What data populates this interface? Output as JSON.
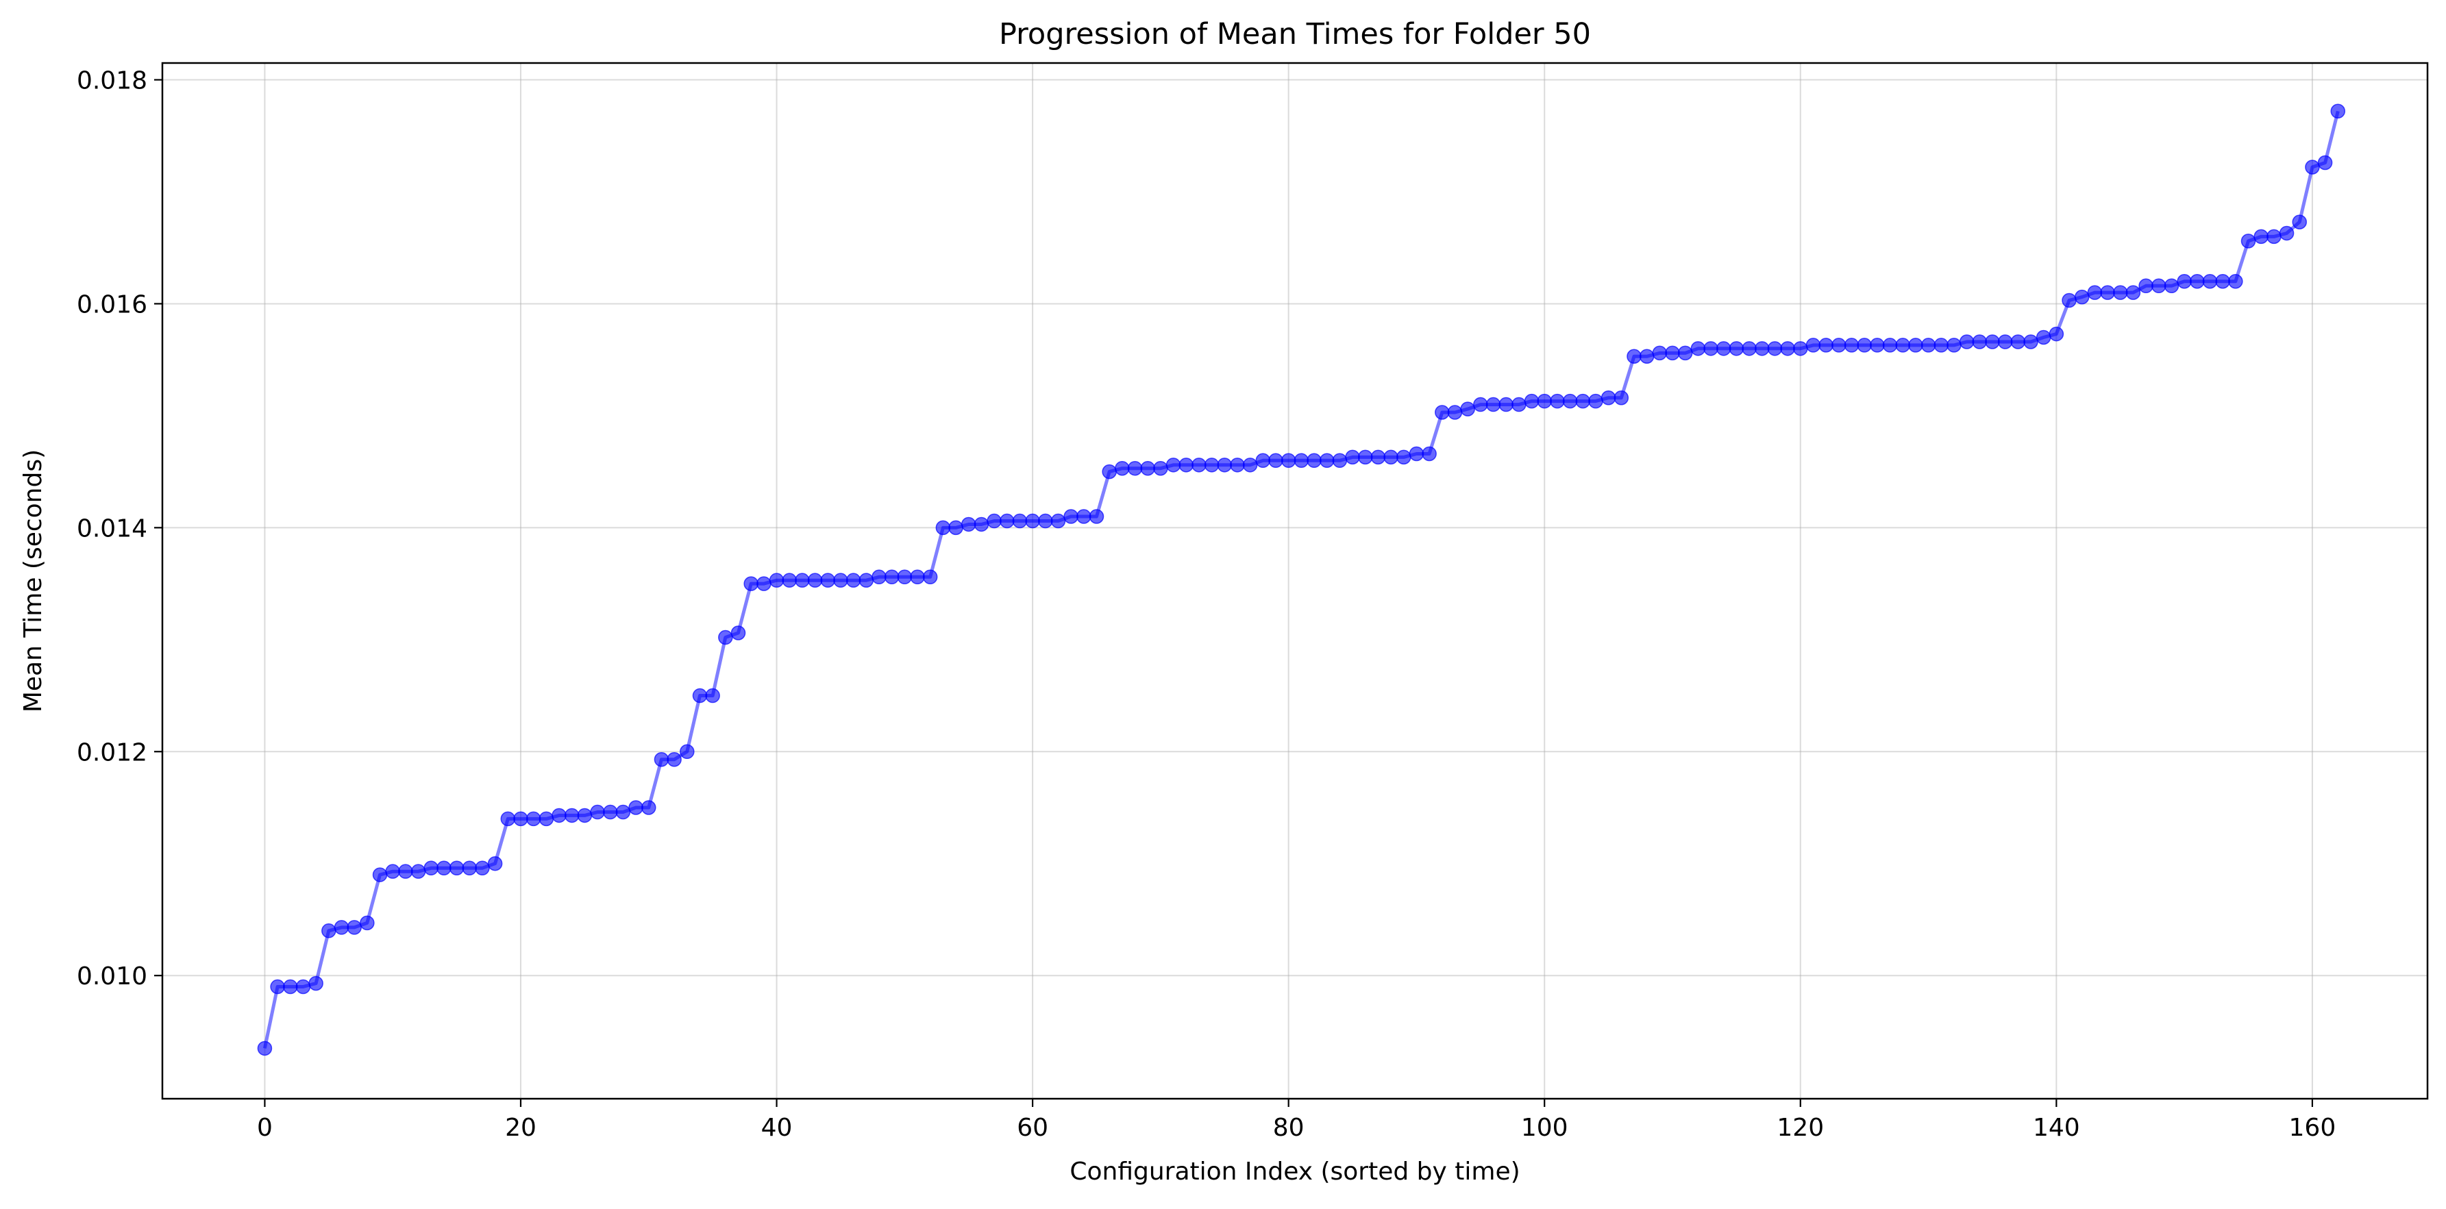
{
  "chart_data": {
    "type": "line",
    "title": "Progression of Mean Times for Folder 50",
    "xlabel": "Configuration Index (sorted by time)",
    "ylabel": "Mean Time (seconds)",
    "xlim": [
      -8,
      169
    ],
    "ylim": [
      0.0089,
      0.01815
    ],
    "xticks": [
      0,
      20,
      40,
      60,
      80,
      100,
      120,
      140,
      160
    ],
    "xtick_labels": [
      "0",
      "20",
      "40",
      "60",
      "80",
      "100",
      "120",
      "140",
      "160"
    ],
    "yticks": [
      0.01,
      0.012,
      0.014,
      0.016,
      0.018
    ],
    "ytick_labels": [
      "0.010",
      "0.012",
      "0.014",
      "0.016",
      "0.018"
    ],
    "grid": true,
    "line_color": "#0000ff",
    "marker": "circle",
    "series": [
      {
        "values": [
          0.00935,
          0.0099,
          0.0099,
          0.0099,
          0.00993,
          0.0104,
          0.01043,
          0.01043,
          0.01047,
          0.0109,
          0.01093,
          0.01093,
          0.01093,
          0.01096,
          0.01096,
          0.01096,
          0.01096,
          0.01096,
          0.011,
          0.0114,
          0.0114,
          0.0114,
          0.0114,
          0.01143,
          0.01143,
          0.01143,
          0.01146,
          0.01146,
          0.01146,
          0.0115,
          0.0115,
          0.01193,
          0.01193,
          0.012,
          0.0125,
          0.0125,
          0.01302,
          0.01306,
          0.0135,
          0.0135,
          0.01353,
          0.01353,
          0.01353,
          0.01353,
          0.01353,
          0.01353,
          0.01353,
          0.01353,
          0.01356,
          0.01356,
          0.01356,
          0.01356,
          0.01356,
          0.014,
          0.014,
          0.01403,
          0.01403,
          0.01406,
          0.01406,
          0.01406,
          0.01406,
          0.01406,
          0.01406,
          0.0141,
          0.0141,
          0.0141,
          0.0145,
          0.01453,
          0.01453,
          0.01453,
          0.01453,
          0.01456,
          0.01456,
          0.01456,
          0.01456,
          0.01456,
          0.01456,
          0.01456,
          0.0146,
          0.0146,
          0.0146,
          0.0146,
          0.0146,
          0.0146,
          0.0146,
          0.01463,
          0.01463,
          0.01463,
          0.01463,
          0.01463,
          0.01466,
          0.01466,
          0.01503,
          0.01503,
          0.01506,
          0.0151,
          0.0151,
          0.0151,
          0.0151,
          0.01513,
          0.01513,
          0.01513,
          0.01513,
          0.01513,
          0.01513,
          0.01516,
          0.01516,
          0.01553,
          0.01553,
          0.01556,
          0.01556,
          0.01556,
          0.0156,
          0.0156,
          0.0156,
          0.0156,
          0.0156,
          0.0156,
          0.0156,
          0.0156,
          0.0156,
          0.01563,
          0.01563,
          0.01563,
          0.01563,
          0.01563,
          0.01563,
          0.01563,
          0.01563,
          0.01563,
          0.01563,
          0.01563,
          0.01563,
          0.01566,
          0.01566,
          0.01566,
          0.01566,
          0.01566,
          0.01566,
          0.0157,
          0.01573,
          0.01603,
          0.01606,
          0.0161,
          0.0161,
          0.0161,
          0.0161,
          0.01616,
          0.01616,
          0.01616,
          0.0162,
          0.0162,
          0.0162,
          0.0162,
          0.0162,
          0.01656,
          0.0166,
          0.0166,
          0.01663,
          0.01673,
          0.01722,
          0.01726,
          0.01772
        ]
      }
    ]
  }
}
